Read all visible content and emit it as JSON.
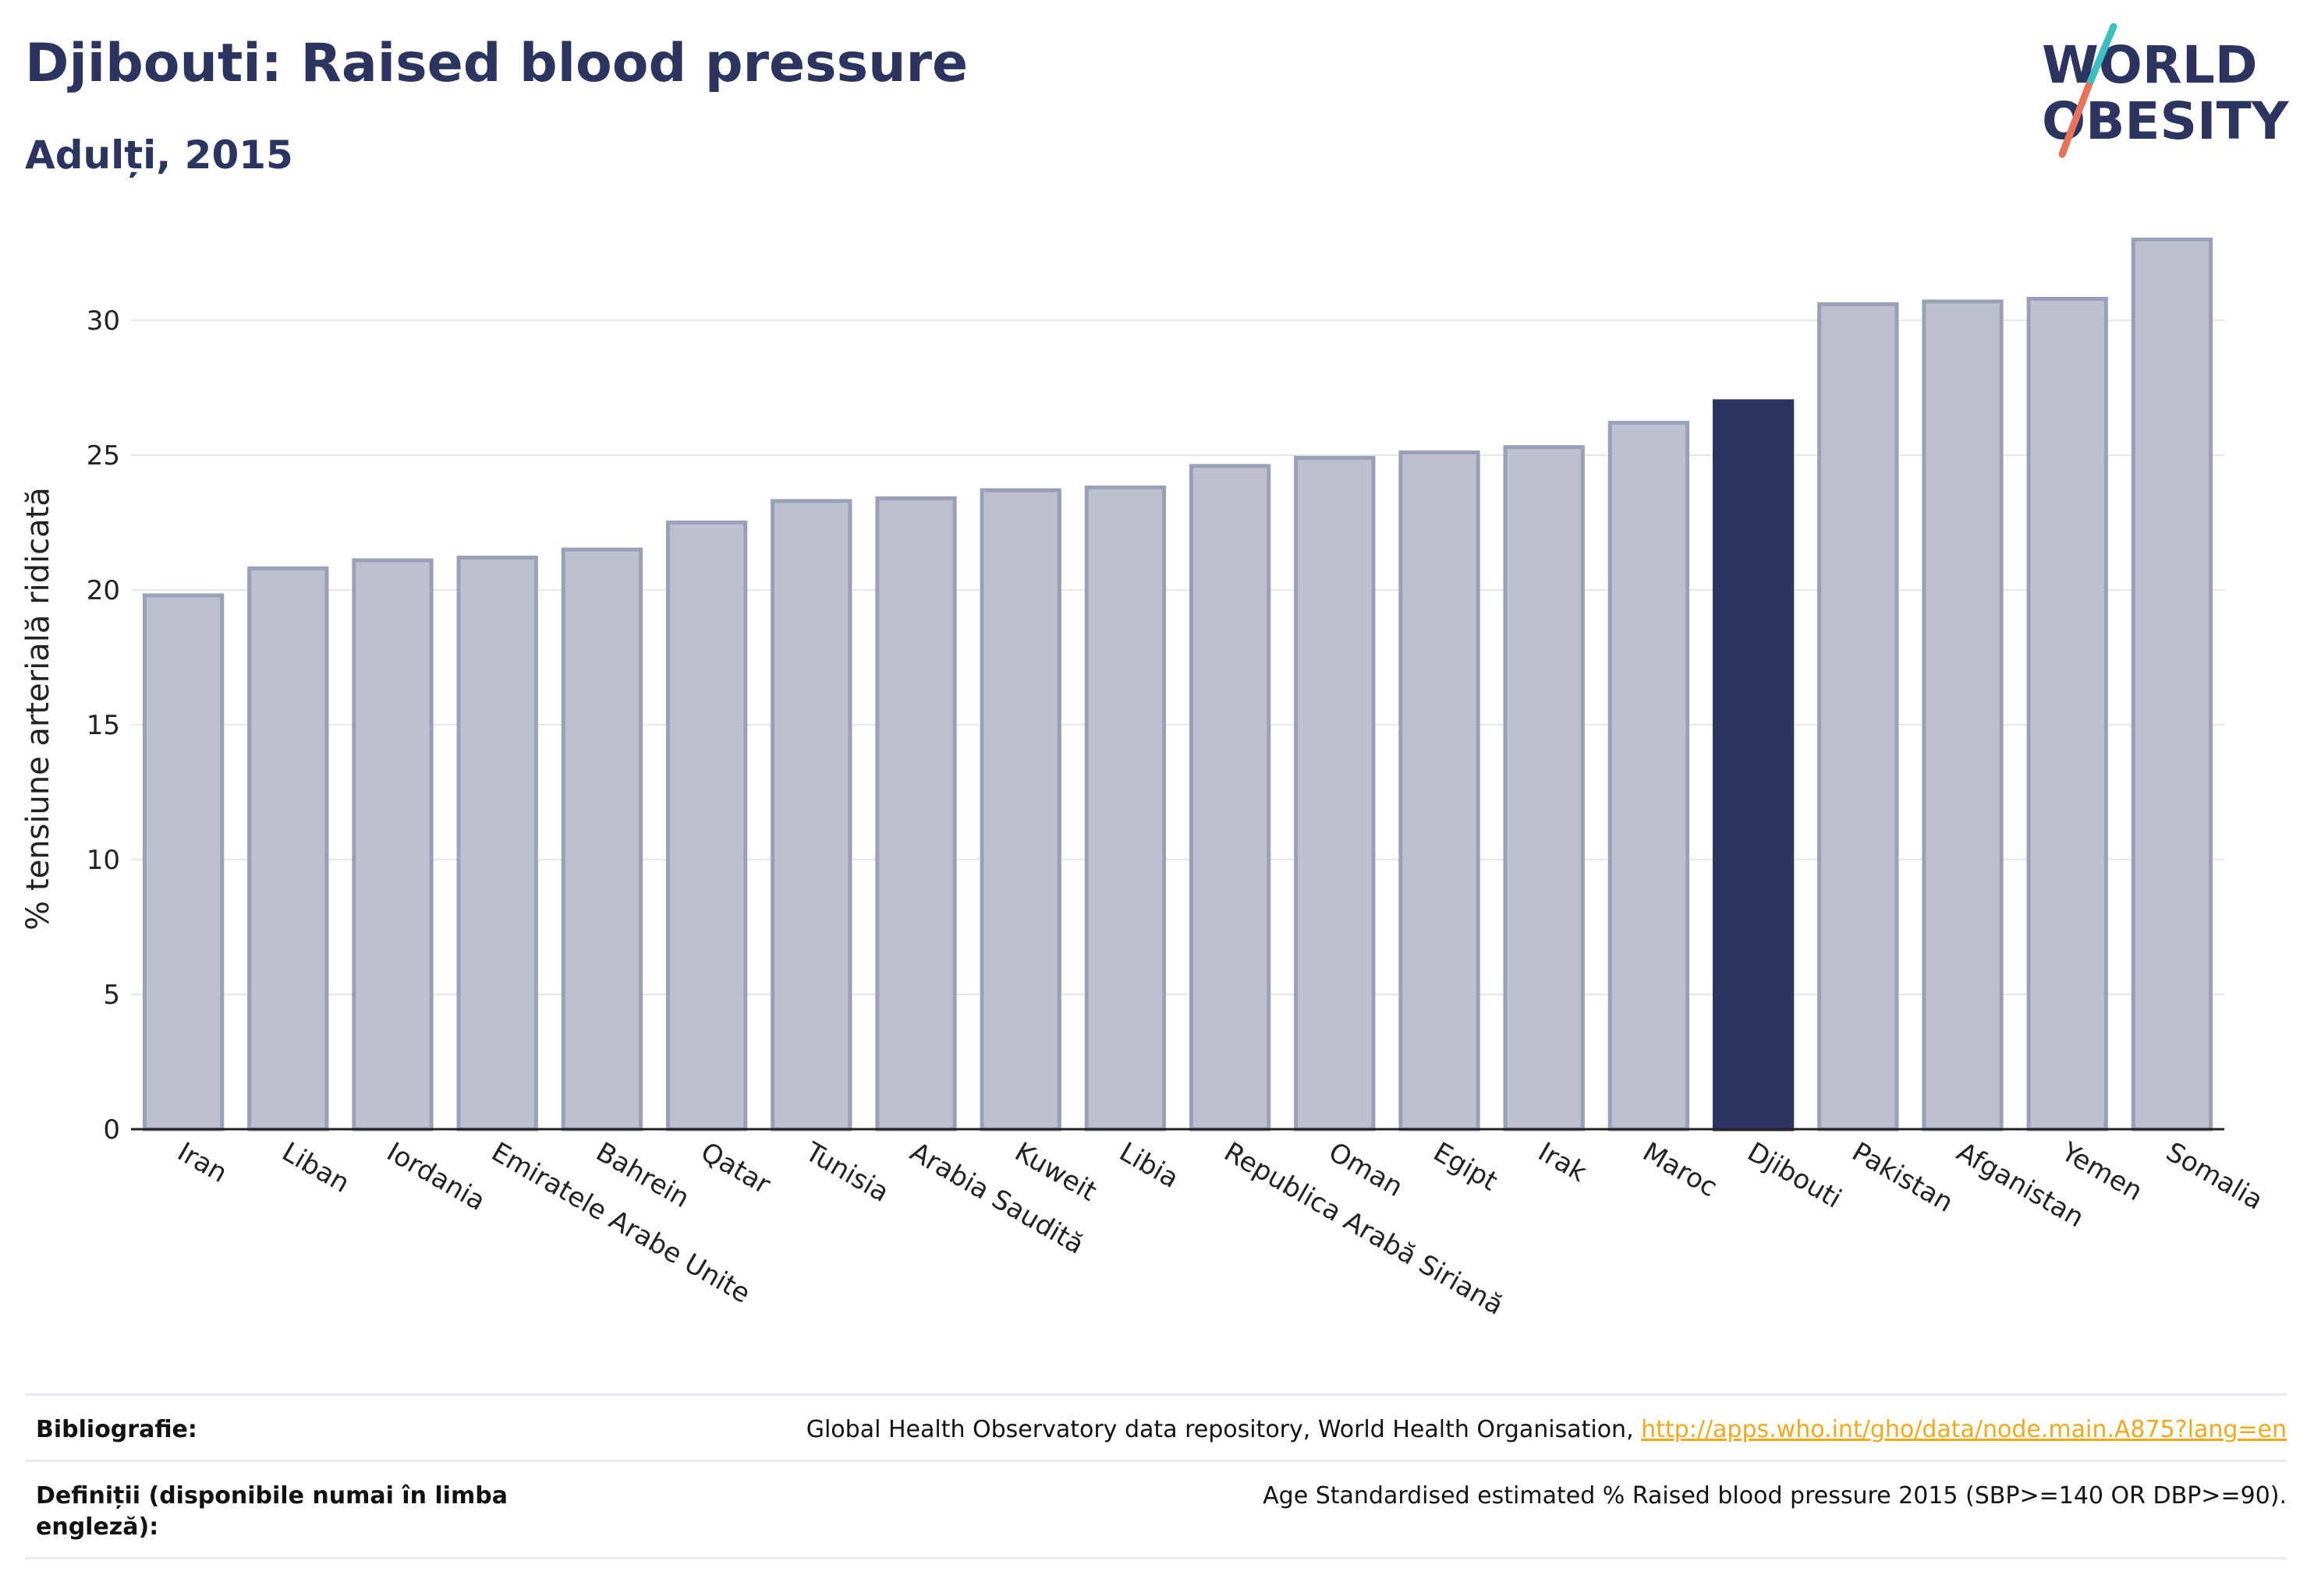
{
  "header": {
    "title": "Djibouti: Raised blood pressure",
    "subtitle": "Adulți, 2015"
  },
  "logo": {
    "line1": "WORLD",
    "line2": "OBESITY",
    "colors": {
      "text": "#2b3560",
      "slash_top": "#3bbfbf",
      "slash_bottom": "#e8735a"
    }
  },
  "colors": {
    "highlight": "#2b3560",
    "bar_fill": "#bcc0cf",
    "bar_stroke": "#9aa0b8",
    "grid": "#e6e6ec",
    "axis": "#222222"
  },
  "chart_data": {
    "type": "bar",
    "title": "",
    "xlabel": "",
    "ylabel": "% tensiune arterială ridicată",
    "ylim": [
      0,
      33.5
    ],
    "yticks": [
      0,
      5,
      10,
      15,
      20,
      25,
      30
    ],
    "grid": true,
    "highlight": "Djibouti",
    "categories": [
      "Iran",
      "Liban",
      "Iordania",
      "Emiratele Arabe Unite",
      "Bahrein",
      "Qatar",
      "Tunisia",
      "Arabia Saudită",
      "Kuweit",
      "Libia",
      "Republica Arabă Siriană",
      "Oman",
      "Egipt",
      "Irak",
      "Maroc",
      "Djibouti",
      "Pakistan",
      "Afganistan",
      "Yemen",
      "Somalia"
    ],
    "values": [
      19.8,
      20.8,
      21.1,
      21.2,
      21.5,
      22.5,
      23.3,
      23.4,
      23.7,
      23.8,
      24.6,
      24.9,
      25.1,
      25.3,
      26.2,
      27.0,
      30.6,
      30.7,
      30.8,
      33.0
    ]
  },
  "footer": {
    "bibliography_label": "Bibliografie:",
    "bibliography_text": "Global Health Observatory data repository, World Health Organisation, ",
    "bibliography_link": "http://apps.who.int/gho/data/node.main.A875?lang=en",
    "definitions_label": "Definiții (disponibile numai în limba engleză):",
    "definitions_text": "Age Standardised estimated % Raised blood pressure 2015 (SBP>=140 OR DBP>=90)."
  }
}
